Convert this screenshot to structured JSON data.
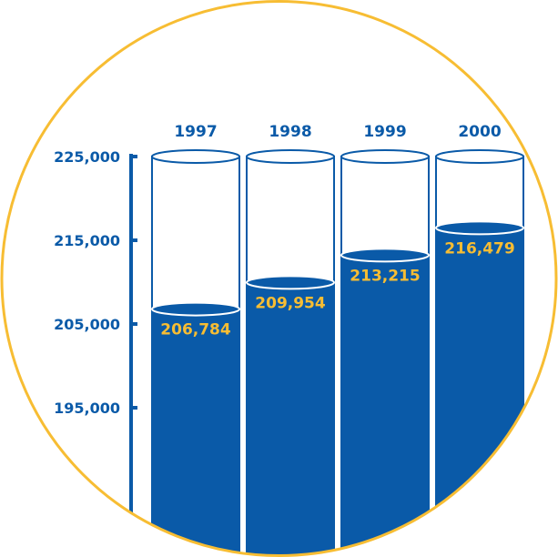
{
  "chart_data": {
    "type": "bar",
    "style": "cylinder-fill",
    "categories": [
      "1997",
      "1998",
      "1999",
      "2000"
    ],
    "values": [
      206784,
      209954,
      213215,
      216479
    ],
    "value_labels": [
      "206,784",
      "209,954",
      "213,215",
      "216,479"
    ],
    "y_ticks": [
      195000,
      205000,
      215000,
      225000
    ],
    "y_tick_labels": [
      "195,000",
      "205,000",
      "215,000",
      "225,000"
    ],
    "ylim": [
      189800,
      225000
    ],
    "title": "",
    "xlabel": "",
    "ylabel": "",
    "grid": false,
    "legend": "none"
  },
  "colors": {
    "fill": "#0a5aa8",
    "circle": "#f7bd33",
    "value_label": "#f7bd33",
    "text": "#0a5aa8",
    "outline": "#0a5aa8",
    "background": "#ffffff"
  }
}
